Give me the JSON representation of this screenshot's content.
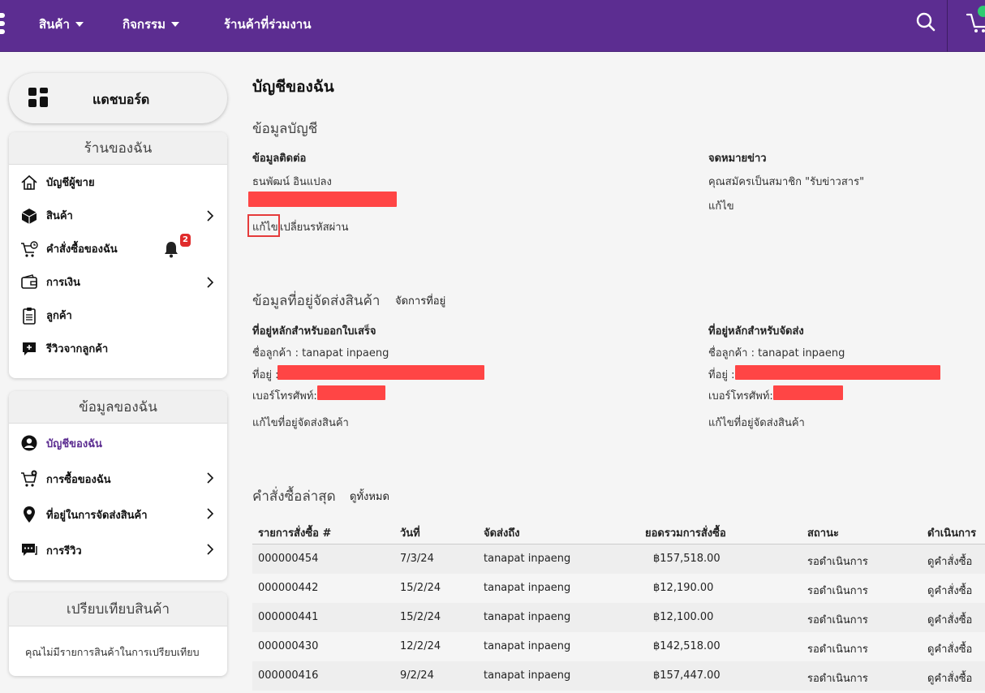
{
  "nav": {
    "products": "สินค้า",
    "activities": "กิจกรรม",
    "partner_stores": "ร้านค้าที่ร่วมงาน"
  },
  "sidebar": {
    "dashboard": "แดชบอร์ด",
    "my_shop": {
      "title": "ร้านของฉัน",
      "items": [
        {
          "label": "บัญชีผู้ขาย",
          "icon": "home-icon"
        },
        {
          "label": "สินค้า",
          "icon": "box-icon"
        },
        {
          "label": "คำสั่งซื้อของฉัน",
          "icon": "cart-clock-icon",
          "badge": "2"
        },
        {
          "label": "การเงิน",
          "icon": "wallet-icon"
        },
        {
          "label": "ลูกค้า",
          "icon": "clipboard-icon"
        },
        {
          "label": "รีวิวจากลูกค้า",
          "icon": "review-icon"
        }
      ]
    },
    "my_info": {
      "title": "ข้อมูลของฉัน",
      "items": [
        {
          "label": "บัญชีของฉัน",
          "icon": "user-circle-icon"
        },
        {
          "label": "การซื้อของฉัน",
          "icon": "cart-plus-icon"
        },
        {
          "label": "ที่อยู่ในการจัดส่งสินค้า",
          "icon": "map-pin-icon"
        },
        {
          "label": "การรีวิว",
          "icon": "chat-icon"
        }
      ]
    },
    "compare": {
      "title": "เปรียบเทียบสินค้า",
      "empty": "คุณไม่มีรายการสินค้าในการเปรียบเทียบ"
    }
  },
  "main": {
    "title": "บัญชีของฉัน",
    "account_info": {
      "title": "ข้อมูลบัญชี",
      "contact_heading": "ข้อมูลติดต่อ",
      "name": "ธนพัฒน์ อินแปลง",
      "edit": "แก้ไข",
      "change_password": "เปลี่ยนรหัสผ่าน",
      "newsletter_heading": "จดหมายข่าว",
      "newsletter_text": "คุณสมัครเป็นสมาชิก \"รับข่าวสาร\"",
      "newsletter_edit": "แก้ไข"
    },
    "address_info": {
      "title": "ข้อมูลที่อยู่จัดส่งสินค้า",
      "manage": "จัดการที่อยู่",
      "billing": {
        "heading": "ที่อยู่หลักสำหรับออกใบเสร็จ",
        "customer": "ชื่อลูกค้า : tanapat inpaeng",
        "address_label": "ที่อยู่ :",
        "phone_label": "เบอร์โทรศัพท์:",
        "edit": "แก้ไขที่อยู่จัดส่งสินค้า"
      },
      "shipping": {
        "heading": "ที่อยู่หลักสำหรับจัดส่ง",
        "customer": "ชื่อลูกค้า : tanapat inpaeng",
        "address_label": "ที่อยู่ :",
        "phone_label": "เบอร์โทรศัพท์:",
        "edit": "แก้ไขที่อยู่จัดส่งสินค้า"
      }
    },
    "recent_orders": {
      "title": "คำสั่งซื้อล่าสุด",
      "view_all": "ดูทั้งหมด",
      "columns": [
        "รายการสั่งซื้อ #",
        "วันที่",
        "จัดส่งถึง",
        "ยอดรวมการสั่งซื้อ",
        "สถานะ",
        "ดำเนินการ"
      ],
      "rows": [
        {
          "id": "000000454",
          "date": "7/3/24",
          "ship_to": "tanapat inpaeng",
          "total": "฿157,518.00",
          "status": "รอดำเนินการ",
          "action": "ดูคำสั่งซื้อ"
        },
        {
          "id": "000000442",
          "date": "15/2/24",
          "ship_to": "tanapat inpaeng",
          "total": "฿12,190.00",
          "status": "รอดำเนินการ",
          "action": "ดูคำสั่งซื้อ"
        },
        {
          "id": "000000441",
          "date": "15/2/24",
          "ship_to": "tanapat inpaeng",
          "total": "฿12,100.00",
          "status": "รอดำเนินการ",
          "action": "ดูคำสั่งซื้อ"
        },
        {
          "id": "000000430",
          "date": "12/2/24",
          "ship_to": "tanapat inpaeng",
          "total": "฿142,518.00",
          "status": "รอดำเนินการ",
          "action": "ดูคำสั่งซื้อ"
        },
        {
          "id": "000000416",
          "date": "9/2/24",
          "ship_to": "tanapat inpaeng",
          "total": "฿157,447.00",
          "status": "รอดำเนินการ",
          "action": "ดูคำสั่งซื้อ"
        }
      ]
    }
  },
  "colors": {
    "brand": "#5c2d91",
    "redaction": "#ff4545",
    "badge": "#e02b2b"
  }
}
